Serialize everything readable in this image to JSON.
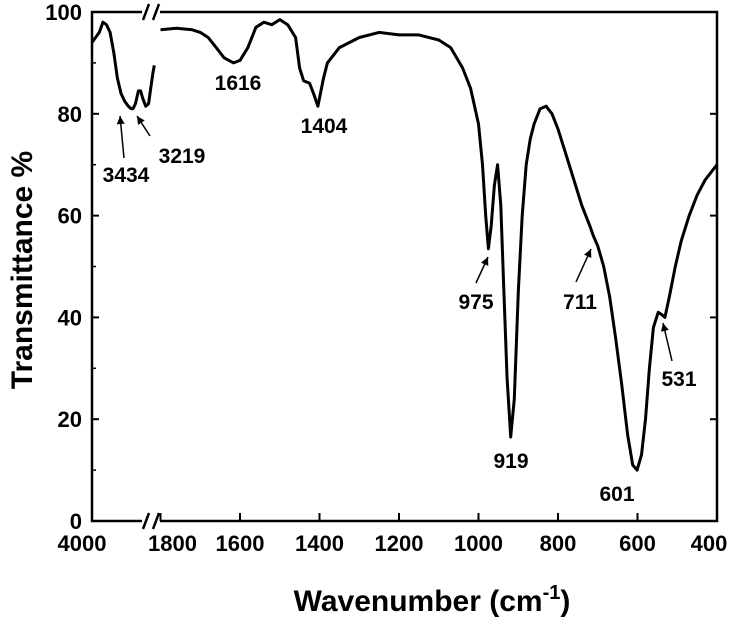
{
  "chart_data": {
    "type": "line",
    "title": "",
    "xlabel": "Wavenumber (cm",
    "xlabel_sup": "-1",
    "xlabel_close": ")",
    "ylabel": "Transmittance %",
    "ylim": [
      0,
      100
    ],
    "x_axis_reversed": true,
    "x_axis_broken": true,
    "x_segments": [
      {
        "range": [
          4000,
          3200
        ]
      },
      {
        "range": [
          1800,
          400
        ]
      }
    ],
    "grid": false,
    "legend": "none",
    "line_color": "#000000",
    "x_ticks": [
      "4000",
      "1800",
      "1600",
      "1400",
      "1200",
      "1000",
      "800",
      "600",
      "400"
    ],
    "y_ticks": [
      "0",
      "20",
      "40",
      "60",
      "80",
      "100"
    ],
    "series": [
      {
        "points_segment1": [
          [
            4000,
            94
          ],
          [
            3950,
            95
          ],
          [
            3900,
            96
          ],
          [
            3850,
            98
          ],
          [
            3800,
            97.5
          ],
          [
            3750,
            96
          ],
          [
            3700,
            92
          ],
          [
            3650,
            87
          ],
          [
            3600,
            84
          ],
          [
            3550,
            82.5
          ],
          [
            3500,
            81.5
          ],
          [
            3460,
            81
          ],
          [
            3434,
            81
          ],
          [
            3400,
            82
          ],
          [
            3360,
            84.5
          ],
          [
            3330,
            84.5
          ],
          [
            3300,
            83
          ],
          [
            3260,
            81.5
          ],
          [
            3219,
            82
          ],
          [
            3190,
            85
          ],
          [
            3160,
            88
          ],
          [
            3140,
            89.5
          ]
        ],
        "points_segment2": [
          [
            1800,
            96.5
          ],
          [
            1760,
            96.8
          ],
          [
            1720,
            96.5
          ],
          [
            1700,
            96
          ],
          [
            1680,
            95
          ],
          [
            1660,
            93
          ],
          [
            1640,
            91
          ],
          [
            1616,
            90
          ],
          [
            1600,
            90.5
          ],
          [
            1580,
            93
          ],
          [
            1560,
            97
          ],
          [
            1540,
            98
          ],
          [
            1520,
            97.5
          ],
          [
            1500,
            98.5
          ],
          [
            1480,
            97.5
          ],
          [
            1460,
            95
          ],
          [
            1450,
            89
          ],
          [
            1440,
            86.5
          ],
          [
            1425,
            86
          ],
          [
            1415,
            84
          ],
          [
            1404,
            81.5
          ],
          [
            1390,
            87
          ],
          [
            1380,
            90
          ],
          [
            1350,
            93
          ],
          [
            1300,
            95
          ],
          [
            1250,
            96
          ],
          [
            1200,
            95.5
          ],
          [
            1150,
            95.5
          ],
          [
            1100,
            94.5
          ],
          [
            1070,
            93
          ],
          [
            1040,
            89
          ],
          [
            1020,
            85
          ],
          [
            1000,
            78
          ],
          [
            990,
            70
          ],
          [
            982,
            60
          ],
          [
            975,
            53.5
          ],
          [
            968,
            58
          ],
          [
            960,
            66
          ],
          [
            952,
            70
          ],
          [
            944,
            62
          ],
          [
            936,
            45
          ],
          [
            928,
            28
          ],
          [
            919,
            16.5
          ],
          [
            910,
            24
          ],
          [
            900,
            45
          ],
          [
            890,
            60
          ],
          [
            880,
            70
          ],
          [
            870,
            75
          ],
          [
            860,
            78
          ],
          [
            845,
            81
          ],
          [
            830,
            81.5
          ],
          [
            815,
            80
          ],
          [
            800,
            77
          ],
          [
            780,
            72
          ],
          [
            760,
            67
          ],
          [
            740,
            62
          ],
          [
            720,
            58
          ],
          [
            711,
            56
          ],
          [
            700,
            54
          ],
          [
            685,
            50
          ],
          [
            670,
            44
          ],
          [
            655,
            36
          ],
          [
            640,
            27
          ],
          [
            625,
            17
          ],
          [
            612,
            11
          ],
          [
            601,
            10
          ],
          [
            590,
            13
          ],
          [
            580,
            20
          ],
          [
            570,
            30
          ],
          [
            560,
            38
          ],
          [
            548,
            41
          ],
          [
            538,
            40.5
          ],
          [
            531,
            40
          ],
          [
            520,
            44
          ],
          [
            505,
            50
          ],
          [
            490,
            55
          ],
          [
            470,
            60
          ],
          [
            450,
            64
          ],
          [
            430,
            67
          ],
          [
            410,
            69
          ],
          [
            400,
            70
          ]
        ]
      }
    ],
    "annotations": [
      {
        "text": "3434",
        "x": 3434,
        "y": 81
      },
      {
        "text": "3219",
        "x": 3219,
        "y": 82
      },
      {
        "text": "1616",
        "x": 1616,
        "y": 90
      },
      {
        "text": "1404",
        "x": 1404,
        "y": 81.5
      },
      {
        "text": "975",
        "x": 975,
        "y": 53.5
      },
      {
        "text": "919",
        "x": 919,
        "y": 16.5
      },
      {
        "text": "711",
        "x": 711,
        "y": 56
      },
      {
        "text": "601",
        "x": 601,
        "y": 10
      },
      {
        "text": "531",
        "x": 531,
        "y": 40
      }
    ]
  }
}
